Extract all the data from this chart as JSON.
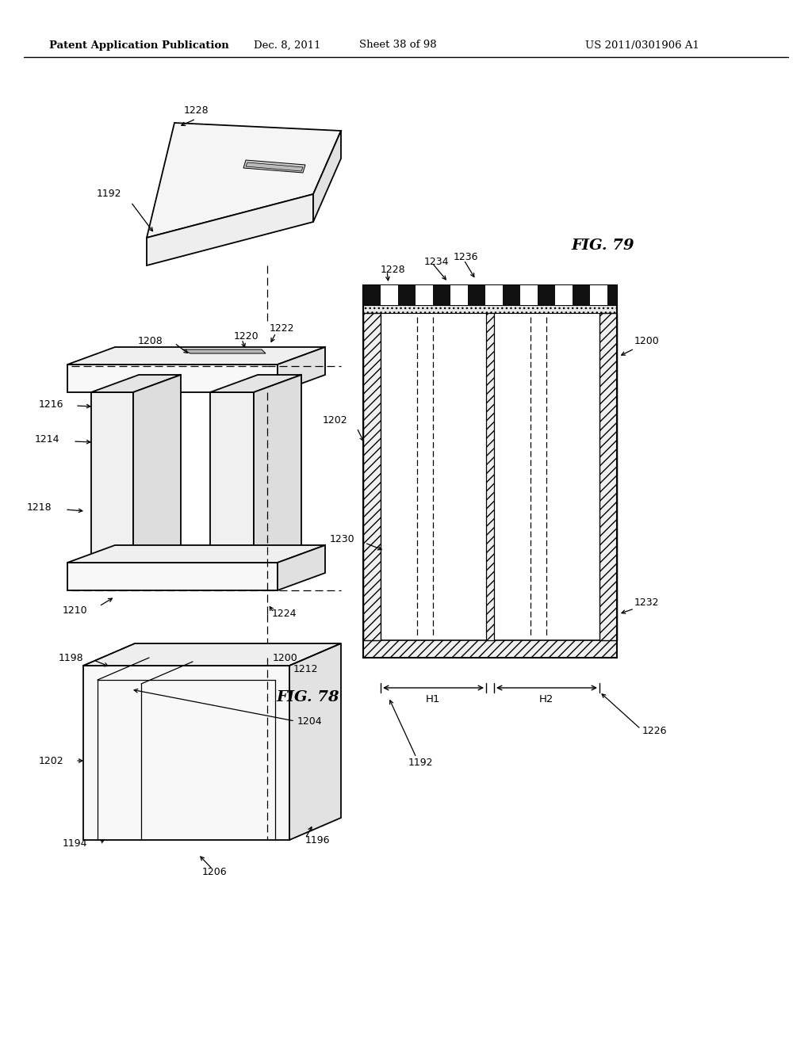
{
  "header_left": "Patent Application Publication",
  "header_mid": "Dec. 8, 2011",
  "header_mid2": "Sheet 38 of 98",
  "header_right": "US 2011/0301906 A1",
  "fig78_label": "FIG. 78",
  "fig79_label": "FIG. 79",
  "bg_color": "#ffffff",
  "line_color": "#000000"
}
